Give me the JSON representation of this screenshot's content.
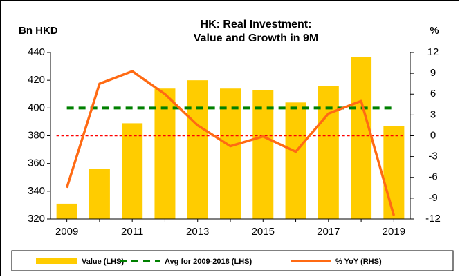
{
  "chart_data": {
    "type": "bar",
    "title": [
      "HK: Real Investment:",
      "Value and Growth in 9M"
    ],
    "y_label": "Bn HKD",
    "y2_label": "%",
    "categories": [
      "2009",
      null,
      "2011",
      null,
      "2013",
      null,
      "2015",
      null,
      "2017",
      null,
      "2019"
    ],
    "series": [
      {
        "name": "Value (LHS)",
        "type": "bar",
        "color": "#ffcc00",
        "values": [
          331,
          356,
          389,
          414,
          420,
          414,
          413,
          404,
          416,
          437,
          387
        ]
      },
      {
        "name": "Avg for 2009-2018 (LHS)",
        "type": "line",
        "dashed": true,
        "color": "#008000",
        "values": [
          400,
          400,
          400,
          400,
          400,
          400,
          400,
          400,
          400,
          400,
          400
        ]
      },
      {
        "name": "% YoY (RHS)",
        "type": "line",
        "axis": "y2",
        "color": "#ff6a13",
        "values": [
          -7.5,
          7.5,
          9.3,
          6.0,
          1.5,
          -1.5,
          -0.1,
          -2.3,
          3.2,
          5.0,
          -11.5
        ]
      }
    ],
    "reference_line": {
      "axis": "y2",
      "value": 0,
      "color": "#ff0000"
    },
    "ylim": [
      320,
      440
    ],
    "yticks": [
      320,
      340,
      360,
      380,
      400,
      420,
      440
    ],
    "y2lim": [
      -12,
      12
    ],
    "y2ticks": [
      -12,
      -9,
      -6,
      -3,
      0,
      3,
      6,
      9,
      12
    ],
    "legend": "bottom"
  }
}
